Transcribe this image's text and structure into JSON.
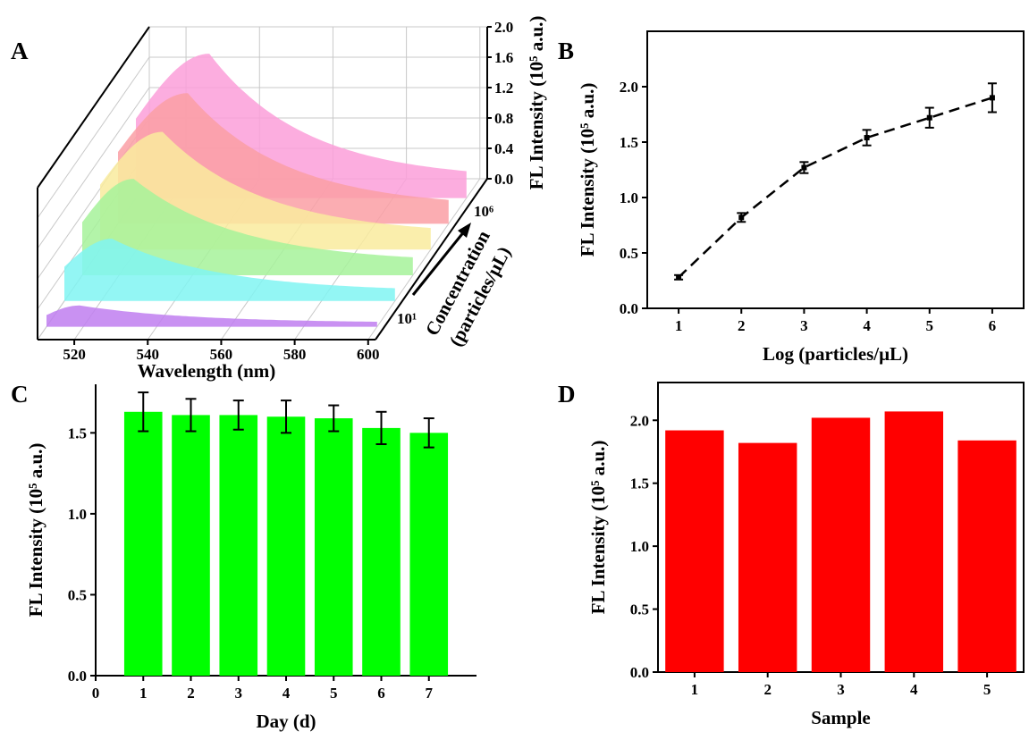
{
  "panels": {
    "A": "A",
    "B": "B",
    "C": "C",
    "D": "D"
  },
  "chart_data": [
    {
      "panel": "A",
      "type": "area",
      "xlabel": "Wavelength (nm)",
      "x_ticks": [
        "520",
        "540",
        "560",
        "580",
        "600"
      ],
      "zlabel": "FL Intensity (10⁵ a.u.)",
      "z_ticks": [
        "0.0",
        "0.4",
        "0.8",
        "1.2",
        "1.6",
        "2.0"
      ],
      "zlim": [
        0,
        2.0
      ],
      "ylabel_line1": "Concentration",
      "ylabel_line2": "(particles/μL)",
      "y_label_low": "10¹",
      "y_label_high": "10⁶",
      "x_range": [
        510,
        602
      ],
      "series": [
        {
          "color": "#c07ef0",
          "peak_nm": 519,
          "peak": 0.28,
          "end": 0.05
        },
        {
          "color": "#80f5f2",
          "peak_nm": 523,
          "peak": 0.82,
          "end": 0.12
        },
        {
          "color": "#a6f29a",
          "peak_nm": 524,
          "peak": 1.27,
          "end": 0.16
        },
        {
          "color": "#f9eb9d",
          "peak_nm": 527,
          "peak": 1.55,
          "end": 0.19
        },
        {
          "color": "#fa9fa4",
          "peak_nm": 529,
          "peak": 1.72,
          "end": 0.21
        },
        {
          "color": "#fb9fd9",
          "peak_nm": 530,
          "peak": 1.9,
          "end": 0.24
        }
      ]
    },
    {
      "panel": "B",
      "type": "line",
      "xlabel": "Log (particles/μL)",
      "ylabel": "FL Intensity (10⁵ a.u.)",
      "xlim": [
        0.5,
        6.5
      ],
      "ylim": [
        0,
        2.5
      ],
      "x_ticks": [
        1,
        2,
        3,
        4,
        5,
        6
      ],
      "y_ticks": [
        "0.0",
        "0.5",
        "1.0",
        "1.5",
        "2.0"
      ],
      "x": [
        1,
        2,
        3,
        4,
        5,
        6
      ],
      "y": [
        0.28,
        0.82,
        1.27,
        1.54,
        1.72,
        1.9
      ],
      "err": [
        0.02,
        0.04,
        0.05,
        0.07,
        0.09,
        0.13
      ]
    },
    {
      "panel": "C",
      "type": "bar",
      "xlabel": "Day (d)",
      "ylabel": "FL Intensity (10⁵ a.u.)",
      "xlim": [
        0,
        8
      ],
      "ylim": [
        0,
        1.8
      ],
      "x_ticks": [
        0,
        1,
        2,
        3,
        4,
        5,
        6,
        7
      ],
      "y_ticks": [
        "0.0",
        "0.5",
        "1.0",
        "1.5"
      ],
      "categories": [
        1,
        2,
        3,
        4,
        5,
        6,
        7
      ],
      "values": [
        1.63,
        1.61,
        1.61,
        1.6,
        1.59,
        1.53,
        1.5
      ],
      "err": [
        0.12,
        0.1,
        0.09,
        0.1,
        0.08,
        0.1,
        0.09
      ],
      "color": "#00ff00"
    },
    {
      "panel": "D",
      "type": "bar",
      "xlabel": "Sample",
      "ylabel": "FL Intensity (10⁵ a.u.)",
      "xlim": [
        0.5,
        5.5
      ],
      "ylim": [
        0,
        2.3
      ],
      "x_ticks": [
        1,
        2,
        3,
        4,
        5
      ],
      "y_ticks": [
        "0.0",
        "0.5",
        "1.0",
        "1.5",
        "2.0"
      ],
      "categories": [
        1,
        2,
        3,
        4,
        5
      ],
      "values": [
        1.92,
        1.82,
        2.02,
        2.07,
        1.84
      ],
      "color": "#ff0000"
    }
  ]
}
